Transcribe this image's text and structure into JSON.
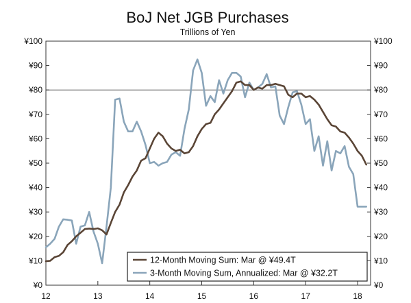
{
  "chart_data": {
    "type": "line",
    "title": "BoJ Net JGB Purchases",
    "subtitle": "Trillions of Yen",
    "xlabel": "",
    "ylabel": "",
    "xlim": [
      12,
      18.25
    ],
    "ylim": [
      0,
      100
    ],
    "y_ticks": [
      0,
      10,
      20,
      30,
      40,
      50,
      60,
      70,
      80,
      90,
      100
    ],
    "y_tick_labels": [
      "¥0",
      "¥10",
      "¥20",
      "¥30",
      "¥40",
      "¥50",
      "¥60",
      "¥70",
      "¥80",
      "¥90",
      "¥100"
    ],
    "x_ticks": [
      12,
      13,
      14,
      15,
      16,
      17,
      18
    ],
    "x_tick_labels": [
      "12",
      "13",
      "14",
      "15",
      "16",
      "17",
      "18"
    ],
    "reference_line": 80,
    "legend_position": "bottom-right",
    "colors": {
      "moving_sum_12": "#5a4536",
      "moving_sum_3": "#8aa5ba",
      "axis": "#333333"
    },
    "series": [
      {
        "name": "12-Month Moving Sum: Mar @ ¥49.4T",
        "key": "moving_sum_12",
        "x": [
          12.0,
          12.083,
          12.167,
          12.25,
          12.333,
          12.417,
          12.5,
          12.583,
          12.667,
          12.75,
          12.833,
          12.917,
          13.0,
          13.083,
          13.167,
          13.25,
          13.333,
          13.417,
          13.5,
          13.583,
          13.667,
          13.75,
          13.833,
          13.917,
          14.0,
          14.083,
          14.167,
          14.25,
          14.333,
          14.417,
          14.5,
          14.583,
          14.667,
          14.75,
          14.833,
          14.917,
          15.0,
          15.083,
          15.167,
          15.25,
          15.333,
          15.417,
          15.5,
          15.583,
          15.667,
          15.75,
          15.833,
          15.917,
          16.0,
          16.083,
          16.167,
          16.25,
          16.333,
          16.417,
          16.5,
          16.583,
          16.667,
          16.75,
          16.833,
          16.917,
          17.0,
          17.083,
          17.167,
          17.25,
          17.333,
          17.417,
          17.5,
          17.583,
          17.667,
          17.75,
          17.833,
          17.917,
          18.0,
          18.083,
          18.167
        ],
        "values": [
          9.8,
          10.0,
          11.5,
          12.0,
          13.5,
          16.5,
          18.0,
          20.0,
          21.5,
          23.0,
          23.2,
          23.0,
          23.3,
          22.5,
          20.8,
          25.5,
          30.0,
          33.0,
          38.0,
          41.0,
          44.5,
          47.0,
          51.0,
          52.0,
          56.0,
          60.0,
          62.5,
          61.0,
          58.0,
          56.0,
          55.0,
          55.5,
          54.0,
          54.5,
          57.0,
          61.0,
          64.0,
          66.0,
          66.5,
          70.0,
          72.0,
          74.5,
          77.0,
          79.5,
          83.0,
          83.5,
          82.0,
          82.0,
          80.0,
          81.0,
          80.5,
          82.0,
          82.0,
          82.5,
          82.0,
          81.5,
          78.0,
          77.0,
          78.5,
          78.5,
          77.0,
          77.5,
          76.0,
          74.0,
          71.0,
          68.0,
          65.5,
          65.0,
          63.0,
          62.5,
          60.5,
          58.0,
          55.0,
          53.0,
          49.4
        ]
      },
      {
        "name": "3-Month Moving Sum, Annualized: Mar @ ¥32.2T",
        "key": "moving_sum_3",
        "x": [
          12.0,
          12.083,
          12.167,
          12.25,
          12.333,
          12.417,
          12.5,
          12.583,
          12.667,
          12.75,
          12.833,
          12.917,
          13.0,
          13.083,
          13.167,
          13.25,
          13.333,
          13.417,
          13.5,
          13.583,
          13.667,
          13.75,
          13.833,
          13.917,
          14.0,
          14.083,
          14.167,
          14.25,
          14.333,
          14.417,
          14.5,
          14.583,
          14.667,
          14.75,
          14.833,
          14.917,
          15.0,
          15.083,
          15.167,
          15.25,
          15.333,
          15.417,
          15.5,
          15.583,
          15.667,
          15.75,
          15.833,
          15.917,
          16.0,
          16.083,
          16.167,
          16.25,
          16.333,
          16.417,
          16.5,
          16.583,
          16.667,
          16.75,
          16.833,
          16.917,
          17.0,
          17.083,
          17.167,
          17.25,
          17.333,
          17.417,
          17.5,
          17.583,
          17.667,
          17.75,
          17.833,
          17.917,
          18.0,
          18.083,
          18.167
        ],
        "values": [
          15.5,
          17.0,
          19.0,
          24.0,
          27.0,
          26.8,
          26.5,
          17.0,
          24.0,
          24.5,
          30.0,
          22.0,
          17.0,
          9.0,
          24.0,
          40.0,
          76.0,
          76.5,
          67.0,
          63.0,
          63.0,
          67.0,
          63.0,
          57.5,
          50.0,
          50.5,
          49.0,
          50.0,
          50.5,
          53.5,
          54.5,
          53.0,
          64.0,
          72.0,
          88.0,
          92.5,
          87.0,
          73.5,
          77.5,
          75.0,
          84.0,
          78.5,
          84.0,
          87.0,
          87.0,
          85.5,
          77.0,
          83.0,
          80.0,
          81.0,
          82.5,
          86.5,
          81.0,
          81.5,
          69.5,
          66.0,
          73.0,
          79.0,
          79.5,
          74.0,
          66.0,
          68.0,
          55.0,
          61.0,
          49.0,
          59.0,
          47.0,
          55.0,
          54.0,
          57.0,
          48.5,
          45.5,
          32.2,
          32.2,
          32.2
        ]
      }
    ]
  }
}
